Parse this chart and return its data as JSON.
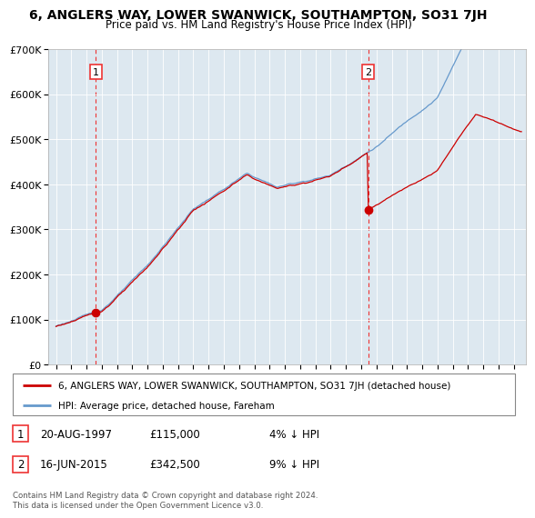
{
  "title": "6, ANGLERS WAY, LOWER SWANWICK, SOUTHAMPTON, SO31 7JH",
  "subtitle": "Price paid vs. HM Land Registry's House Price Index (HPI)",
  "legend_line1": "6, ANGLERS WAY, LOWER SWANWICK, SOUTHAMPTON, SO31 7JH (detached house)",
  "legend_line2": "HPI: Average price, detached house, Fareham",
  "sale1_date": "20-AUG-1997",
  "sale1_price": 115000,
  "sale1_note": "4% ↓ HPI",
  "sale2_date": "16-JUN-2015",
  "sale2_price": 342500,
  "sale2_note": "9% ↓ HPI",
  "footer": "Contains HM Land Registry data © Crown copyright and database right 2024.\nThis data is licensed under the Open Government Licence v3.0.",
  "hpi_color": "#6699cc",
  "price_color": "#cc0000",
  "vline_color": "#ee3333",
  "bg_color": "#dde8f0",
  "ylim": [
    0,
    700000
  ],
  "yticks": [
    0,
    100000,
    200000,
    300000,
    400000,
    500000,
    600000,
    700000
  ],
  "year_start": 1995,
  "year_end": 2025,
  "sale1_x": 1997.62,
  "sale2_x": 2015.45
}
